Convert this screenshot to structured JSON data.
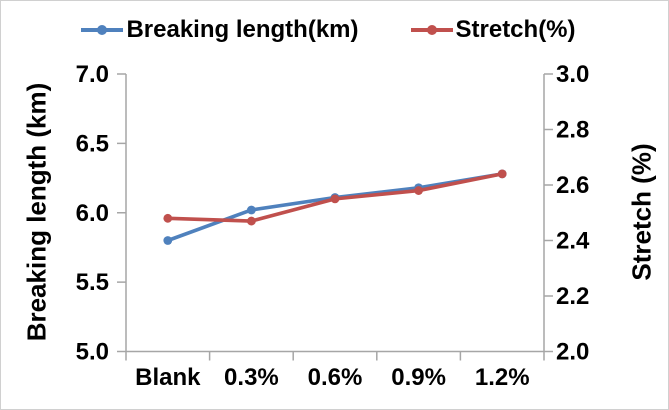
{
  "chart_data": {
    "type": "line",
    "categories": [
      "Blank",
      "0.3%",
      "0.6%",
      "0.9%",
      "1.2%"
    ],
    "series": [
      {
        "name": "Breaking length(km)",
        "axis": "left",
        "color": "#4F81BD",
        "marker": "circle",
        "values": [
          5.8,
          6.02,
          6.11,
          6.18,
          6.28
        ]
      },
      {
        "name": "Stretch(%)",
        "axis": "right",
        "color": "#C0504D",
        "marker": "circle",
        "values": [
          2.48,
          2.47,
          2.55,
          2.58,
          2.64
        ]
      }
    ],
    "left_axis": {
      "label": "Breaking length (km)",
      "min": 5.0,
      "max": 7.0,
      "tick_labels": [
        "7.0",
        "6.5",
        "6.0",
        "5.5",
        "5.0"
      ]
    },
    "right_axis": {
      "label": "Stretch (%)",
      "min": 2.0,
      "max": 3.0,
      "tick_labels": [
        "3.0",
        "2.8",
        "2.6",
        "2.4",
        "2.2",
        "2.0"
      ]
    },
    "xlabel": "",
    "title": "",
    "legend_position": "top",
    "grid": false,
    "axis_color": "#A6A6A6",
    "text_color": "#000000"
  }
}
